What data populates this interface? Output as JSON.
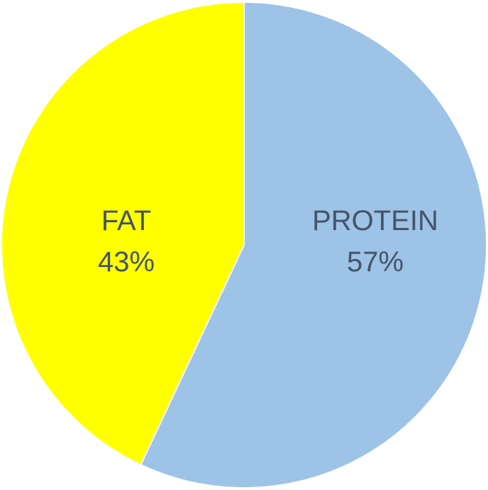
{
  "chart_data": {
    "type": "pie",
    "title": "",
    "start_angle_deg": 0,
    "direction": "clockwise",
    "slices": [
      {
        "label": "PROTEIN",
        "value": 57,
        "value_label": "57%",
        "color": "#9dc3e6"
      },
      {
        "label": "FAT",
        "value": 43,
        "value_label": "43%",
        "color": "#ffff00"
      }
    ],
    "label_color": "#44546a",
    "legend": "none"
  }
}
